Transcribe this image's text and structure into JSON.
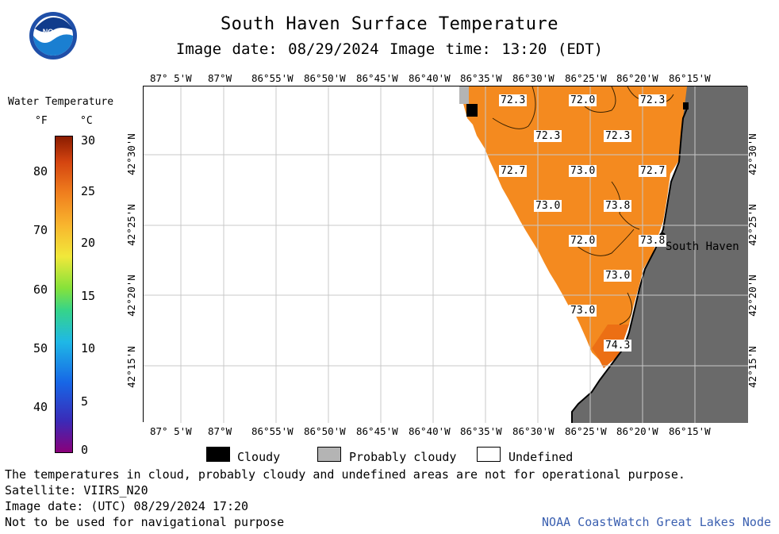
{
  "header": {
    "title": "South Haven Surface Temperature",
    "subtitle": "Image date: 08/29/2024   Image time: 13:20 (EDT)",
    "logo_text": "NOAA"
  },
  "legend": {
    "title": "Water Temperature",
    "unit_f": "°F",
    "unit_c": "°C",
    "f_ticks": [
      "80",
      "70",
      "60",
      "50",
      "40"
    ],
    "c_ticks": [
      "30",
      "25",
      "20",
      "15",
      "10",
      "5",
      "0"
    ]
  },
  "map": {
    "lon_labels": [
      "87° 5'W",
      "87°W",
      "86°55'W",
      "86°50'W",
      "86°45'W",
      "86°40'W",
      "86°35'W",
      "86°30'W",
      "86°25'W",
      "86°20'W",
      "86°15'W"
    ],
    "lat_labels": [
      "42°30'N",
      "42°25'N",
      "42°20'N",
      "42°15'N"
    ],
    "place_label": "South Haven",
    "water_color": "#f48a1f",
    "land_color": "#6a6a6a",
    "temps": [
      "72.3",
      "72.0",
      "72.3",
      "72.3",
      "72.3",
      "72.7",
      "73.0",
      "72.7",
      "73.0",
      "73.8",
      "72.0",
      "73.8",
      "73.0",
      "73.0",
      "74.3"
    ]
  },
  "key": {
    "cloudy": "Cloudy",
    "probably_cloudy": "Probably cloudy",
    "undefined": "Undefined"
  },
  "footer": {
    "disclaimer": "The temperatures in cloud, probably cloudy and undefined areas are not for operational purpose.",
    "satellite": "Satellite: VIIRS_N20",
    "utc_date": "Image date: (UTC) 08/29/2024  17:20",
    "nav_warning": "Not to be used for navigational purpose",
    "credit": "NOAA CoastWatch Great Lakes Node"
  }
}
